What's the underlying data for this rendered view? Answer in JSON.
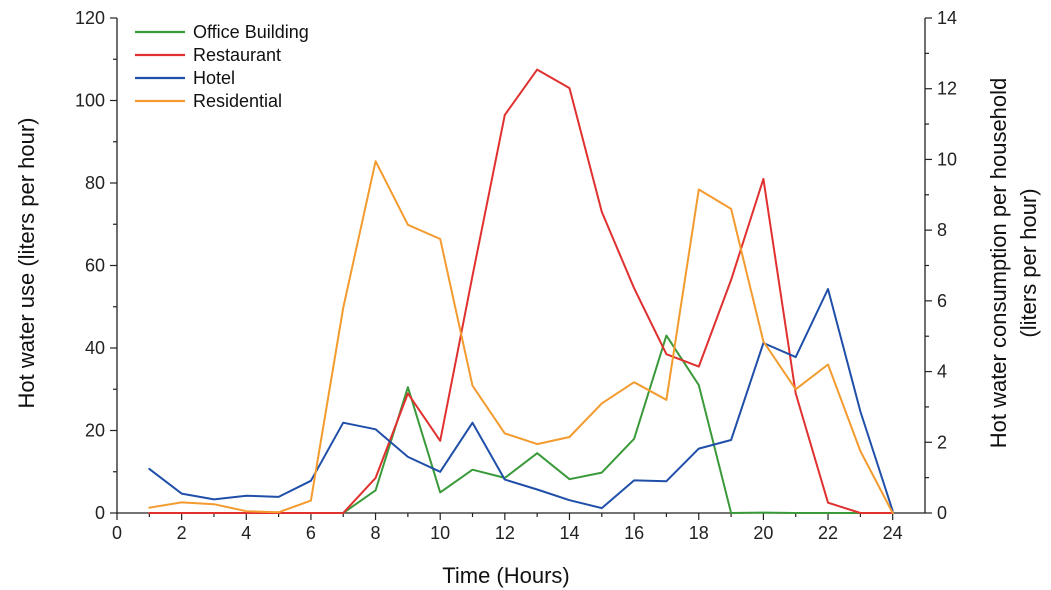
{
  "chart_data": {
    "type": "line",
    "xlabel": "Time (Hours)",
    "ylabel_left": "Hot water use (liters per hour)",
    "ylabel_right": "Hot water consumption per household (liters per hour)",
    "xlim": [
      0,
      25
    ],
    "xticks": [
      0,
      2,
      4,
      6,
      8,
      10,
      12,
      14,
      16,
      18,
      20,
      22,
      24
    ],
    "ylim_left": [
      0,
      120
    ],
    "yticks_left": [
      0,
      20,
      40,
      60,
      80,
      100,
      120
    ],
    "ylim_right": [
      0,
      14
    ],
    "yticks_right": [
      0,
      2,
      4,
      6,
      8,
      10,
      12,
      14
    ],
    "grid": false,
    "legend_position": "top-left",
    "series": [
      {
        "name": "Office Building",
        "color": "#3a9a3a",
        "axis": "left",
        "x": [
          7,
          8,
          9,
          10,
          11,
          12,
          13,
          14,
          15,
          16,
          17,
          18,
          19,
          20,
          21,
          22,
          23,
          24
        ],
        "y": [
          0,
          5.5,
          30.5,
          5,
          10.5,
          8.5,
          14.5,
          8.2,
          9.8,
          18,
          43,
          31,
          0,
          0.1,
          0,
          0,
          0,
          0
        ]
      },
      {
        "name": "Restaurant",
        "color": "#e03030",
        "axis": "left",
        "x": [
          1,
          2,
          3,
          4,
          5,
          6,
          7,
          8,
          9,
          10,
          11,
          12,
          13,
          14,
          15,
          16,
          17,
          18,
          19,
          20,
          21,
          22,
          23,
          24
        ],
        "y": [
          0,
          0,
          0,
          0,
          0,
          0,
          0,
          8.5,
          29,
          17.5,
          57.5,
          96.5,
          107.5,
          103,
          73,
          54.5,
          38.5,
          35.5,
          56.5,
          81,
          29,
          2.5,
          0,
          0
        ]
      },
      {
        "name": "Hotel",
        "color": "#1f4fa8",
        "axis": "left",
        "x": [
          1,
          2,
          3,
          4,
          5,
          6,
          7,
          8,
          9,
          10,
          11,
          12,
          13,
          14,
          15,
          16,
          17,
          18,
          19,
          20,
          21,
          22,
          23,
          24
        ],
        "y": [
          10.7,
          4.7,
          3.3,
          4.2,
          3.9,
          7.8,
          21.9,
          20.3,
          13.6,
          10,
          21.9,
          8.1,
          5.7,
          3.1,
          1.2,
          7.9,
          7.7,
          15.6,
          17.7,
          41.2,
          37.8,
          54.3,
          24.6,
          0.5
        ]
      },
      {
        "name": "Residential",
        "color": "#f39b2e",
        "axis": "right",
        "x": [
          1,
          2,
          3,
          4,
          5,
          6,
          7,
          8,
          9,
          10,
          11,
          12,
          13,
          14,
          15,
          16,
          17,
          18,
          19,
          20,
          21,
          22,
          23,
          24
        ],
        "y": [
          0.15,
          0.3,
          0.25,
          0.05,
          0.02,
          0.35,
          5.8,
          9.95,
          8.15,
          7.75,
          3.6,
          2.25,
          1.95,
          2.15,
          3.1,
          3.7,
          3.2,
          9.15,
          8.6,
          4.85,
          3.5,
          4.2,
          1.75,
          0
        ]
      }
    ]
  }
}
